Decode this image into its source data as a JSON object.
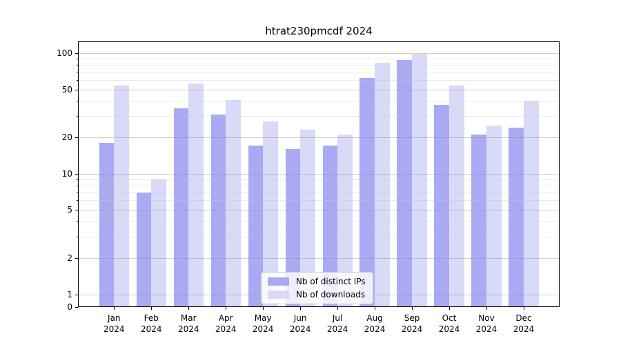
{
  "chart_data": {
    "type": "bar",
    "title": "htrat230pmcdf 2024",
    "categories": [
      "Jan",
      "Feb",
      "Mar",
      "Apr",
      "May",
      "Jun",
      "Jul",
      "Aug",
      "Sep",
      "Oct",
      "Nov",
      "Dec"
    ],
    "year": "2024",
    "series": [
      {
        "name": "Nb of distinct IPs",
        "color": "#aaaaf4",
        "values": [
          18,
          7,
          35,
          31,
          17,
          16,
          17,
          62,
          87,
          37,
          21,
          24
        ]
      },
      {
        "name": "Nb of downloads",
        "color": "#d9d9f8",
        "values": [
          54,
          9,
          56,
          41,
          27,
          23,
          21,
          83,
          99,
          54,
          25,
          40
        ]
      }
    ],
    "xlabel": "",
    "ylabel": "",
    "yscale": "symlog",
    "ylim": [
      0,
      125
    ],
    "yticks": [
      0,
      1,
      2,
      5,
      10,
      20,
      50,
      100
    ],
    "yticks_minor": [
      3,
      4,
      6,
      7,
      8,
      9,
      30,
      40,
      60,
      70,
      80,
      90
    ],
    "grid": true,
    "legend_position": "lower center"
  }
}
